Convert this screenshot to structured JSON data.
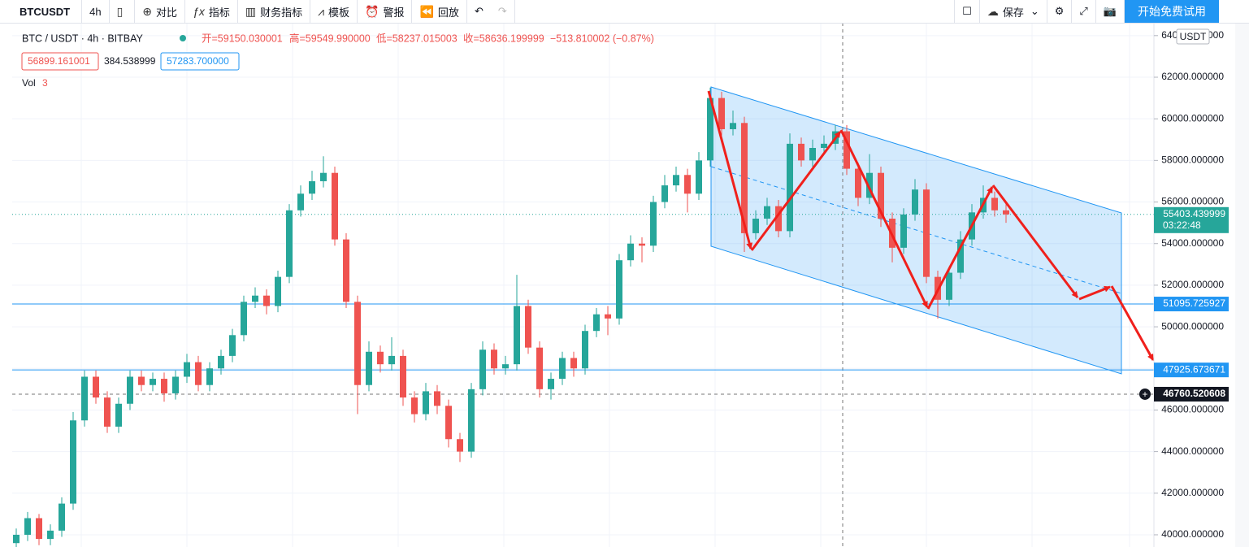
{
  "toolbar": {
    "symbol": "BTCUSDT",
    "interval": "4h",
    "items": [
      "对比",
      "指标",
      "财务指标",
      "模板",
      "警报",
      "回放"
    ],
    "save": "保存",
    "trial": "开始免费试用"
  },
  "legend": {
    "symbol": "BTC / USDT · 4h · BITBAY",
    "open": "开=59150.030001",
    "high": "高=59549.990000",
    "low": "低=58237.015003",
    "close": "收=58636.199999",
    "change": "−513.810002 (−0.87%)",
    "bid": "56899.161001",
    "spread": "384.538999",
    "ask": "57283.700000",
    "volume": "Vol",
    "volume_value": "3"
  },
  "chart_data": {
    "type": "candlestick",
    "currency": "USDT",
    "up_color": "#26a69a",
    "down_color": "#ef5350",
    "open": [
      39600,
      40000,
      40800,
      39800,
      40200,
      41500,
      45500,
      47600,
      46600,
      45200,
      46300,
      47600,
      47200,
      47500,
      46800,
      47600,
      48300,
      47200,
      48000,
      48600,
      49600,
      51200,
      51500,
      51000,
      52400,
      55600,
      56400,
      57000,
      57400,
      54200,
      51200,
      47200,
      48800,
      48200,
      48600,
      46600,
      45800,
      46900,
      46200,
      44600,
      44000,
      47000,
      48900,
      48000,
      48200,
      51000,
      49000,
      47000,
      47500,
      48500,
      48000,
      49800,
      50600,
      50400,
      53200,
      54000,
      53900,
      56000,
      56800,
      57300,
      56400,
      58000,
      61000,
      59500,
      59800,
      54500,
      55200,
      55800,
      54600,
      58800,
      58000,
      58600,
      58800,
      59400,
      57600,
      56200,
      57400,
      55200,
      53800,
      55400,
      56600,
      52400,
      51300,
      52600,
      54200,
      55500,
      56200,
      55600
    ],
    "high": [
      40300,
      41100,
      41000,
      40500,
      41800,
      45900,
      47900,
      47900,
      46900,
      46600,
      47900,
      47900,
      47800,
      47800,
      47900,
      48700,
      48600,
      48300,
      48900,
      49900,
      51500,
      51900,
      51800,
      52700,
      55900,
      56800,
      57500,
      58200,
      57700,
      54500,
      51500,
      49300,
      49100,
      49500,
      48900,
      46900,
      47300,
      47200,
      46500,
      44900,
      47300,
      49300,
      49200,
      48600,
      52500,
      51300,
      49300,
      47800,
      48800,
      48800,
      50100,
      50900,
      51000,
      53500,
      54400,
      54300,
      56300,
      57300,
      57700,
      57600,
      58400,
      61500,
      61300,
      60400,
      60100,
      55600,
      56200,
      56100,
      59300,
      59100,
      59000,
      59200,
      59700,
      59700,
      57900,
      58300,
      57700,
      55500,
      55700,
      57100,
      56900,
      52700,
      52900,
      54600,
      55900,
      56800,
      56500,
      55900
    ],
    "low": [
      39300,
      39700,
      39500,
      39500,
      39900,
      41200,
      45200,
      46300,
      44900,
      44900,
      46000,
      46900,
      46900,
      46400,
      46500,
      47300,
      46900,
      46900,
      47700,
      48300,
      49300,
      50900,
      50600,
      50700,
      52100,
      55300,
      56100,
      56700,
      53900,
      50900,
      45800,
      46900,
      47800,
      47900,
      46200,
      45400,
      45500,
      45800,
      44200,
      43500,
      43700,
      46700,
      47700,
      47700,
      47900,
      48700,
      46600,
      46500,
      47200,
      47600,
      47700,
      49500,
      49600,
      50100,
      52900,
      53100,
      53600,
      55700,
      56500,
      55500,
      56100,
      57700,
      59200,
      59200,
      53600,
      54200,
      54900,
      54300,
      54300,
      57700,
      57700,
      58300,
      58500,
      57300,
      55800,
      55900,
      54800,
      53100,
      53500,
      55100,
      52100,
      50400,
      51000,
      52300,
      53900,
      55200,
      55300,
      55000
    ],
    "close": [
      40000,
      40800,
      39800,
      40200,
      41500,
      45500,
      47600,
      46600,
      45200,
      46300,
      47600,
      47200,
      47500,
      46800,
      47600,
      48300,
      47200,
      48000,
      48600,
      49600,
      51200,
      51500,
      51000,
      52400,
      55600,
      56400,
      57000,
      57400,
      54200,
      51200,
      47200,
      48800,
      48200,
      48600,
      46600,
      45800,
      46900,
      46200,
      44600,
      44000,
      47000,
      48900,
      48000,
      48200,
      51000,
      49000,
      47000,
      47500,
      48500,
      48000,
      49800,
      50600,
      50400,
      53200,
      54000,
      53900,
      56000,
      56800,
      57300,
      56400,
      58000,
      61000,
      59500,
      59800,
      54500,
      55200,
      55800,
      54600,
      58800,
      58000,
      58600,
      58800,
      59400,
      57600,
      56200,
      57400,
      55200,
      53800,
      55400,
      56600,
      52400,
      51300,
      52600,
      54200,
      55500,
      56200,
      55600,
      55403.44
    ],
    "ylim": [
      39413,
      64540
    ],
    "yticks": [
      {
        "value": 40000,
        "label": "40000.000000"
      },
      {
        "value": 42000,
        "label": "42000.000000"
      },
      {
        "value": 44000,
        "label": "44000.000000"
      },
      {
        "value": 46000,
        "label": "46000.000000"
      },
      {
        "value": 48000,
        "label": "48000.000000"
      },
      {
        "value": 50000,
        "label": "50000.000000"
      },
      {
        "value": 52000,
        "label": "52000.000000"
      },
      {
        "value": 54000,
        "label": "54000.000000"
      },
      {
        "value": 56000,
        "label": "56000.000000"
      },
      {
        "value": 58000,
        "label": "58000.000000"
      },
      {
        "value": 60000,
        "label": "60000.000000"
      },
      {
        "value": 62000,
        "label": "62000.000000"
      },
      {
        "value": 64000,
        "label": "64000.000000"
      }
    ],
    "grid": true,
    "current_price": {
      "value": 55403.439999,
      "countdown": "03:22:48",
      "color": "#26a69a"
    },
    "price_lines": [
      {
        "value": 51095.725927,
        "color": "#2196f3"
      },
      {
        "value": 47925.673671,
        "color": "#2196f3"
      }
    ],
    "crosshair": {
      "value": 46760.520608,
      "color": "#131722"
    }
  }
}
